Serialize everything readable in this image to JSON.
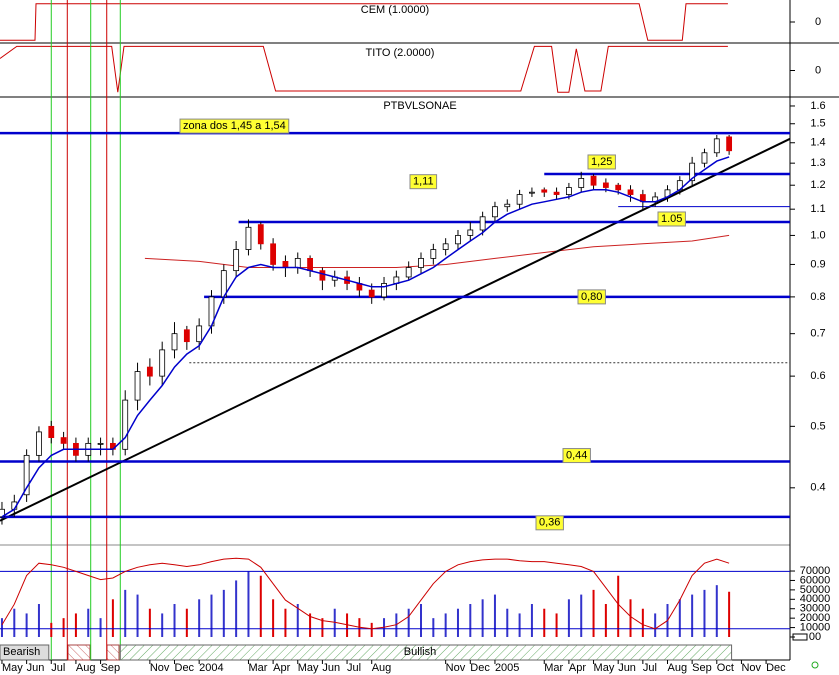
{
  "chart_data": [
    {
      "type": "line",
      "title": "CEM (1.0000)",
      "color": "#cc0000",
      "x": [
        -0.08,
        1.34,
        1.38,
        25.85,
        26.2,
        27.6,
        27.75,
        29.45
      ],
      "values": [
        -1,
        -1,
        1,
        1,
        -1,
        -1,
        1,
        1
      ],
      "xlim": [
        -0.08,
        31.97
      ],
      "ylim": [
        -1.1,
        1.1
      ],
      "yticks": [
        0
      ]
    },
    {
      "type": "line",
      "title": "TITO (2.0000)",
      "color": "#cc0000",
      "x": [
        -0.08,
        0.6,
        4.45,
        4.7,
        4.95,
        10.6,
        11.1,
        21.05,
        21.6,
        22.3,
        22.55,
        23.0,
        23.3,
        23.65,
        24.3,
        24.6,
        29.45
      ],
      "values": [
        0.5,
        1,
        1,
        -0.9,
        1,
        1,
        -0.85,
        -0.85,
        1,
        1,
        -0.9,
        -0.9,
        0.9,
        -0.85,
        -0.85,
        1,
        1
      ],
      "xlim": [
        -0.08,
        31.97
      ],
      "ylim": [
        -1.1,
        1.1
      ],
      "yticks": [
        0
      ]
    },
    {
      "type": "candlestick",
      "title": "PTBVLSONAE",
      "log_scale": true,
      "xlim": [
        -0.08,
        31.97
      ],
      "ylim": [
        0.325,
        1.653
      ],
      "yticks": [
        0.4,
        0.5,
        0.6,
        0.7,
        0.8,
        0.9,
        {
          "value": 1,
          "label": "1.0"
        },
        1.1,
        1.2,
        1.3,
        1.4,
        1.5,
        1.6
      ],
      "color_up": "#ffffff",
      "color_down": "#dd0000",
      "x": [
        0,
        0.5,
        1,
        1.5,
        2,
        2.5,
        3,
        3.5,
        4,
        4.5,
        5,
        5.5,
        6,
        6.5,
        7,
        7.5,
        8,
        8.5,
        9,
        9.5,
        10,
        10.5,
        11,
        11.5,
        12,
        12.5,
        13,
        13.5,
        14,
        14.5,
        15,
        15.5,
        16,
        16.5,
        17,
        17.5,
        18,
        18.5,
        19,
        19.5,
        20,
        20.5,
        21,
        21.5,
        22,
        22.5,
        23,
        23.5,
        24,
        24.5,
        25,
        25.5,
        26,
        26.5,
        27,
        27.5,
        28,
        28.5,
        29,
        29.5
      ],
      "open": [
        0.36,
        0.37,
        0.39,
        0.45,
        0.5,
        0.48,
        0.47,
        0.45,
        0.47,
        0.47,
        0.46,
        0.55,
        0.62,
        0.6,
        0.66,
        0.71,
        0.68,
        0.72,
        0.8,
        0.88,
        0.95,
        1.04,
        0.97,
        0.91,
        0.89,
        0.92,
        0.88,
        0.85,
        0.86,
        0.84,
        0.82,
        0.8,
        0.84,
        0.86,
        0.89,
        0.92,
        0.95,
        0.97,
        1.0,
        1.02,
        1.07,
        1.11,
        1.12,
        1.17,
        1.18,
        1.17,
        1.16,
        1.19,
        1.24,
        1.21,
        1.2,
        1.18,
        1.16,
        1.13,
        1.15,
        1.18,
        1.22,
        1.3,
        1.35,
        1.43
      ],
      "high": [
        0.38,
        0.39,
        0.46,
        0.5,
        0.51,
        0.49,
        0.48,
        0.48,
        0.48,
        0.48,
        0.57,
        0.63,
        0.64,
        0.68,
        0.73,
        0.72,
        0.74,
        0.82,
        0.9,
        0.98,
        1.06,
        1.05,
        0.99,
        0.93,
        0.94,
        0.93,
        0.89,
        0.88,
        0.88,
        0.86,
        0.84,
        0.86,
        0.88,
        0.91,
        0.94,
        0.97,
        0.99,
        1.02,
        1.05,
        1.09,
        1.13,
        1.14,
        1.18,
        1.19,
        1.19,
        1.19,
        1.21,
        1.26,
        1.25,
        1.23,
        1.21,
        1.2,
        1.18,
        1.17,
        1.2,
        1.24,
        1.33,
        1.37,
        1.44,
        1.44
      ],
      "low": [
        0.35,
        0.36,
        0.38,
        0.44,
        0.47,
        0.46,
        0.44,
        0.44,
        0.45,
        0.45,
        0.45,
        0.53,
        0.58,
        0.58,
        0.64,
        0.66,
        0.66,
        0.7,
        0.78,
        0.86,
        0.93,
        0.95,
        0.88,
        0.86,
        0.87,
        0.86,
        0.82,
        0.83,
        0.82,
        0.8,
        0.78,
        0.79,
        0.82,
        0.85,
        0.87,
        0.9,
        0.93,
        0.95,
        0.98,
        1.0,
        1.05,
        1.09,
        1.1,
        1.15,
        1.15,
        1.14,
        1.14,
        1.17,
        1.18,
        1.17,
        1.16,
        1.13,
        1.1,
        1.11,
        1.13,
        1.16,
        1.2,
        1.28,
        1.33,
        1.34
      ],
      "close": [
        0.37,
        0.38,
        0.45,
        0.49,
        0.48,
        0.47,
        0.45,
        0.47,
        0.47,
        0.46,
        0.55,
        0.61,
        0.6,
        0.66,
        0.7,
        0.68,
        0.72,
        0.8,
        0.88,
        0.95,
        1.03,
        0.97,
        0.9,
        0.89,
        0.92,
        0.88,
        0.85,
        0.86,
        0.84,
        0.82,
        0.8,
        0.84,
        0.86,
        0.89,
        0.92,
        0.95,
        0.97,
        1.0,
        1.02,
        1.07,
        1.11,
        1.12,
        1.16,
        1.17,
        1.17,
        1.16,
        1.19,
        1.23,
        1.2,
        1.19,
        1.18,
        1.16,
        1.13,
        1.15,
        1.18,
        1.22,
        1.3,
        1.35,
        1.42,
        1.36
      ],
      "ma": {
        "color": "#0000cc",
        "values": [
          0.36,
          0.37,
          0.4,
          0.43,
          0.45,
          0.46,
          0.46,
          0.46,
          0.46,
          0.46,
          0.48,
          0.52,
          0.55,
          0.58,
          0.62,
          0.65,
          0.67,
          0.72,
          0.8,
          0.86,
          0.89,
          0.9,
          0.89,
          0.89,
          0.89,
          0.88,
          0.87,
          0.86,
          0.85,
          0.84,
          0.83,
          0.83,
          0.84,
          0.85,
          0.87,
          0.89,
          0.92,
          0.95,
          0.98,
          1.01,
          1.05,
          1.08,
          1.1,
          1.12,
          1.13,
          1.14,
          1.15,
          1.17,
          1.18,
          1.18,
          1.17,
          1.15,
          1.13,
          1.13,
          1.15,
          1.18,
          1.23,
          1.27,
          1.31,
          1.33
        ]
      },
      "long_ma": {
        "color": "#cc2222",
        "x": [
          5.8,
          8,
          10,
          12,
          14,
          16,
          18,
          20,
          22,
          24,
          26,
          28,
          29.5
        ],
        "values": [
          0.92,
          0.91,
          0.89,
          0.89,
          0.89,
          0.89,
          0.9,
          0.92,
          0.94,
          0.96,
          0.97,
          0.98,
          1.0
        ]
      },
      "trendline": {
        "color": "#000000",
        "x": [
          -0.08,
          31.97
        ],
        "values": [
          0.355,
          1.42
        ]
      },
      "dotted": {
        "color": "#333333",
        "x": [
          7.6,
          31.97
        ],
        "value": 0.63
      },
      "levels_color": "#0000cc",
      "levels": [
        {
          "value": 1.45,
          "label": "zona dos 1,45 a 1,54",
          "x_start": -0.08,
          "style": "thick"
        },
        {
          "value": 1.25,
          "label": "1,25",
          "x_start": 22.0,
          "style": "thick"
        },
        {
          "value": 1.05,
          "label": "1.05",
          "x_start": 9.6,
          "style": "thick"
        },
        {
          "value": 1.11,
          "label": "1,11",
          "x_start": 25.0,
          "style": "thin"
        },
        {
          "value": 0.8,
          "label": "0,80",
          "x_start": 8.2,
          "style": "thick"
        },
        {
          "value": 0.44,
          "label": "0,44",
          "x_start": -0.08,
          "style": "thick"
        },
        {
          "value": 0.36,
          "label": "0,36",
          "x_start": -0.08,
          "style": "thick"
        }
      ],
      "signals": {
        "buy_color": "#22cc22",
        "sell_color": "#cc0000",
        "buy": [
          2.0,
          3.6,
          4.8
        ],
        "sell": [
          2.65,
          4.25
        ]
      }
    },
    {
      "type": "bar",
      "xlim": [
        -0.08,
        31.97
      ],
      "ylim": [
        0,
        87000
      ],
      "yticks": [
        {
          "value": 0,
          "label": "00"
        },
        10000,
        20000,
        30000,
        40000,
        50000,
        60000,
        70000
      ],
      "color_up": "#3333cc",
      "color_down": "#dd0000",
      "x": [
        0,
        0.5,
        1,
        1.5,
        2,
        2.5,
        3,
        3.5,
        4,
        4.5,
        5,
        5.5,
        6,
        6.5,
        7,
        7.5,
        8,
        8.5,
        9,
        9.5,
        10,
        10.5,
        11,
        11.5,
        12,
        12.5,
        13,
        13.5,
        14,
        14.5,
        15,
        15.5,
        16,
        16.5,
        17,
        17.5,
        18,
        18.5,
        19,
        19.5,
        20,
        20.5,
        21,
        21.5,
        22,
        22.5,
        23,
        23.5,
        24,
        24.5,
        25,
        25.5,
        26,
        26.5,
        27,
        27.5,
        28,
        28.5,
        29,
        29.5
      ],
      "values": [
        20000,
        30000,
        25000,
        35000,
        15000,
        20000,
        25000,
        30000,
        20000,
        40000,
        50000,
        45000,
        30000,
        25000,
        35000,
        30000,
        40000,
        45000,
        50000,
        60000,
        70000,
        65000,
        40000,
        30000,
        35000,
        25000,
        20000,
        30000,
        25000,
        20000,
        15000,
        20000,
        25000,
        30000,
        35000,
        20000,
        25000,
        30000,
        35000,
        40000,
        45000,
        30000,
        25000,
        35000,
        30000,
        25000,
        40000,
        45000,
        50000,
        35000,
        65000,
        40000,
        30000,
        25000,
        35000,
        40000,
        45000,
        50000,
        55000,
        48000
      ],
      "oscillator": {
        "color": "#cc0000",
        "y2lim": [
          0,
          100
        ],
        "levels": [
          80,
          10
        ],
        "levels_color": "#0000cc",
        "values": [
          15,
          40,
          75,
          90,
          88,
          85,
          80,
          75,
          70,
          72,
          80,
          85,
          88,
          90,
          88,
          86,
          88,
          92,
          95,
          96,
          95,
          85,
          65,
          45,
          35,
          25,
          20,
          18,
          15,
          12,
          10,
          12,
          15,
          25,
          45,
          65,
          80,
          88,
          92,
          94,
          95,
          95,
          93,
          92,
          92,
          90,
          88,
          86,
          80,
          60,
          40,
          25,
          15,
          10,
          20,
          45,
          75,
          90,
          95,
          90
        ]
      },
      "regimes": [
        {
          "label": "Bearish",
          "x": [
            -0.08,
            1.9
          ]
        },
        {
          "label": "Bullish",
          "x": [
            4.8,
            29.6
          ]
        }
      ],
      "xticks": [
        {
          "value": 0,
          "label": "May"
        },
        {
          "value": 1,
          "label": "Jun"
        },
        {
          "value": 2,
          "label": "Jul"
        },
        {
          "value": 3,
          "label": "Aug"
        },
        {
          "value": 4,
          "label": "Sep"
        },
        {
          "value": 6,
          "label": "Nov"
        },
        {
          "value": 7,
          "label": "Dec"
        },
        {
          "value": 8,
          "label": "2004"
        },
        {
          "value": 10,
          "label": "Mar"
        },
        {
          "value": 11,
          "label": "Apr"
        },
        {
          "value": 12,
          "label": "May"
        },
        {
          "value": 13,
          "label": "Jun"
        },
        {
          "value": 14,
          "label": "Jul"
        },
        {
          "value": 15,
          "label": "Aug"
        },
        {
          "value": 18,
          "label": "Nov"
        },
        {
          "value": 19,
          "label": "Dec"
        },
        {
          "value": 20,
          "label": "2005"
        },
        {
          "value": 22,
          "label": "Mar"
        },
        {
          "value": 23,
          "label": "Apr"
        },
        {
          "value": 24,
          "label": "May"
        },
        {
          "value": 25,
          "label": "Jun"
        },
        {
          "value": 26,
          "label": "Jul"
        },
        {
          "value": 27,
          "label": "Aug"
        },
        {
          "value": 28,
          "label": "Sep"
        },
        {
          "value": 29,
          "label": "Oct"
        },
        {
          "value": 30,
          "label": "Nov"
        },
        {
          "value": 31,
          "label": "Dec"
        }
      ]
    }
  ]
}
